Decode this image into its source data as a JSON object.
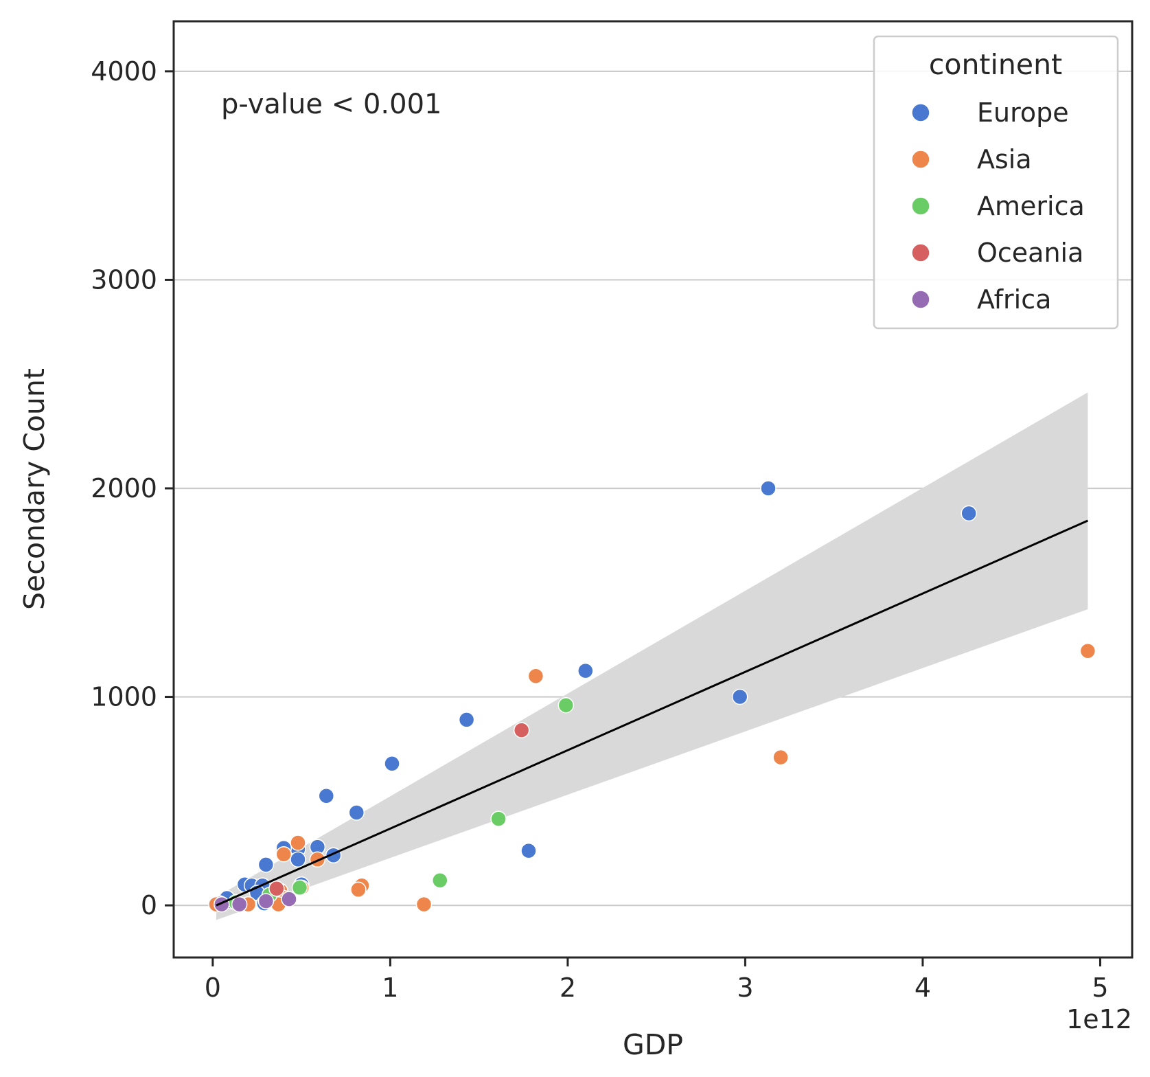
{
  "chart_data": {
    "type": "scatter",
    "xlabel": "GDP",
    "ylabel": "Secondary Count",
    "x_offset_label": "1e12",
    "xlim": [
      -0.22,
      5.18
    ],
    "ylim": [
      -250,
      4240
    ],
    "x_ticks": [
      0,
      1,
      2,
      3,
      4,
      5
    ],
    "x_tick_labels": [
      "0",
      "1",
      "2",
      "3",
      "4",
      "5"
    ],
    "y_ticks": [
      0,
      1000,
      2000,
      3000,
      4000
    ],
    "y_tick_labels": [
      "0",
      "1000",
      "2000",
      "3000",
      "4000"
    ],
    "grid": "horizontal",
    "annotation": "p-value < 0.001",
    "legend": {
      "title": "continent",
      "placement": "top-right"
    },
    "series": [
      {
        "name": "Europe",
        "color": "#4878d0",
        "points": [
          [
            3.13,
            2000
          ],
          [
            4.26,
            1880
          ],
          [
            2.1,
            1125
          ],
          [
            2.97,
            1000
          ],
          [
            1.43,
            890
          ],
          [
            1.01,
            680
          ],
          [
            0.64,
            525
          ],
          [
            0.81,
            445
          ],
          [
            1.78,
            262
          ],
          [
            0.59,
            280
          ],
          [
            0.68,
            240
          ],
          [
            0.48,
            270
          ],
          [
            0.48,
            220
          ],
          [
            0.4,
            275
          ],
          [
            0.3,
            195
          ],
          [
            0.18,
            100
          ],
          [
            0.22,
            95
          ],
          [
            0.28,
            95
          ],
          [
            0.25,
            60
          ],
          [
            0.5,
            100
          ],
          [
            0.36,
            40
          ],
          [
            0.29,
            10
          ],
          [
            0.1,
            20
          ],
          [
            0.08,
            35
          ],
          [
            0.04,
            10
          ]
        ]
      },
      {
        "name": "Asia",
        "color": "#ee854a",
        "points": [
          [
            4.93,
            1220
          ],
          [
            1.82,
            1100
          ],
          [
            3.2,
            710
          ],
          [
            0.48,
            300
          ],
          [
            0.4,
            245
          ],
          [
            0.59,
            220
          ],
          [
            0.84,
            95
          ],
          [
            0.82,
            75
          ],
          [
            1.19,
            5
          ],
          [
            0.5,
            85
          ],
          [
            0.38,
            70
          ],
          [
            0.4,
            35
          ],
          [
            0.37,
            5
          ],
          [
            0.2,
            5
          ],
          [
            0.02,
            5
          ]
        ]
      },
      {
        "name": "America",
        "color": "#6acc64",
        "points": [
          [
            1.99,
            960
          ],
          [
            1.61,
            415
          ],
          [
            1.28,
            120
          ],
          [
            0.49,
            85
          ],
          [
            0.32,
            50
          ],
          [
            0.13,
            15
          ]
        ]
      },
      {
        "name": "Oceania",
        "color": "#d65f5f",
        "points": [
          [
            1.74,
            840
          ],
          [
            0.36,
            80
          ]
        ]
      },
      {
        "name": "Africa",
        "color": "#956cb4",
        "points": [
          [
            0.43,
            30
          ],
          [
            0.15,
            5
          ],
          [
            0.05,
            5
          ],
          [
            0.3,
            20
          ]
        ]
      }
    ],
    "regression": {
      "x": [
        0.02,
        4.93
      ],
      "y": [
        0,
        1845
      ],
      "ci_upper": [
        [
          0.02,
          40
        ],
        [
          4.93,
          2460
        ]
      ],
      "ci_lower": [
        [
          0.02,
          -70
        ],
        [
          4.93,
          1420
        ]
      ]
    }
  },
  "colors": {
    "axis": "#262626",
    "grid": "#cccccc",
    "ci_band": "#d9d9d9",
    "line": "#000000"
  }
}
